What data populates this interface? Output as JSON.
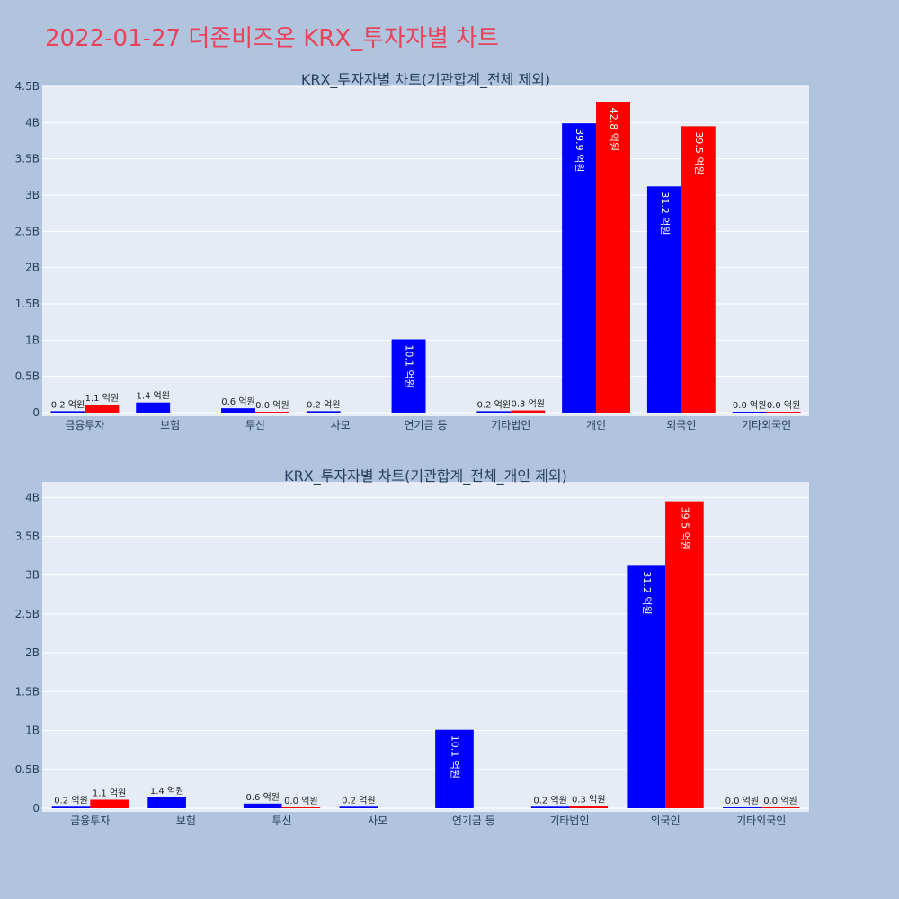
{
  "page": {
    "title": "2022-01-27 더존비즈온 KRX_투자자별 차트"
  },
  "colors": {
    "series_blue": "#0000ff",
    "series_red": "#ff0000",
    "plot_bg": "#e5ecf6",
    "grid": "#ffffff",
    "page_bg": "#b0c4de",
    "title": "#e8435a"
  },
  "chart_data": [
    {
      "type": "bar",
      "title": "KRX_투자자별 차트(기관합계_전체 제외)",
      "categories": [
        "금융투자",
        "보험",
        "투신",
        "사모",
        "연기금 등",
        "기타법인",
        "개인",
        "외국인",
        "기타외국인"
      ],
      "series": [
        {
          "color": "#0000ff",
          "values": [
            0.02,
            0.14,
            0.06,
            0.02,
            1.01,
            0.02,
            3.99,
            3.12,
            0.0
          ],
          "labels": [
            "0.2 억원",
            "1.4 억원",
            "0.6 억원",
            "0.2 억원",
            "10.1 억원",
            "0.2 억원",
            "39.9 억원",
            "31.2 억원",
            "0.0 억원"
          ]
        },
        {
          "color": "#ff0000",
          "values": [
            0.11,
            null,
            0.0,
            null,
            null,
            0.03,
            4.28,
            3.95,
            0.0
          ],
          "labels": [
            "1.1 억원",
            "",
            "0.0 억원",
            "",
            "",
            "0.3 억원",
            "42.8 억원",
            "39.5 억원",
            "0.0 억원"
          ]
        }
      ],
      "ylim": [
        0,
        4.5
      ],
      "yticks": [
        0,
        0.5,
        1,
        1.5,
        2,
        2.5,
        3,
        3.5,
        4,
        4.5
      ],
      "ytick_labels": [
        "0",
        "0.5B",
        "1B",
        "1.5B",
        "2B",
        "2.5B",
        "3B",
        "3.5B",
        "4B",
        "4.5B"
      ],
      "grid": true
    },
    {
      "type": "bar",
      "title": "KRX_투자자별 차트(기관합계_전체_개인 제외)",
      "categories": [
        "금융투자",
        "보험",
        "투신",
        "사모",
        "연기금 등",
        "기타법인",
        "외국인",
        "기타외국인"
      ],
      "series": [
        {
          "color": "#0000ff",
          "values": [
            0.02,
            0.14,
            0.06,
            0.02,
            1.01,
            0.02,
            3.12,
            0.0
          ],
          "labels": [
            "0.2 억원",
            "1.4 억원",
            "0.6 억원",
            "0.2 억원",
            "10.1 억원",
            "0.2 억원",
            "31.2 억원",
            "0.0 억원"
          ]
        },
        {
          "color": "#ff0000",
          "values": [
            0.11,
            null,
            0.0,
            null,
            null,
            0.03,
            3.95,
            0.0
          ],
          "labels": [
            "1.1 억원",
            "",
            "0.0 억원",
            "",
            "",
            "0.3 억원",
            "39.5 억원",
            "0.0 억원"
          ]
        }
      ],
      "ylim": [
        0,
        4.2
      ],
      "yticks": [
        0,
        0.5,
        1,
        1.5,
        2,
        2.5,
        3,
        3.5,
        4
      ],
      "ytick_labels": [
        "0",
        "0.5B",
        "1B",
        "1.5B",
        "2B",
        "2.5B",
        "3B",
        "3.5B",
        "4B"
      ],
      "grid": true
    }
  ]
}
